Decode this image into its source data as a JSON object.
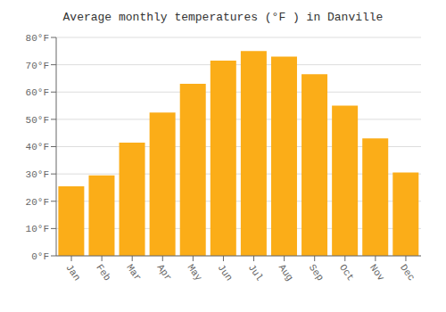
{
  "chart_data": {
    "type": "bar",
    "title": "Average monthly temperatures (°F ) in Danville",
    "categories": [
      "Jan",
      "Feb",
      "Mar",
      "Apr",
      "May",
      "Jun",
      "Jul",
      "Aug",
      "Sep",
      "Oct",
      "Nov",
      "Dec"
    ],
    "values": [
      25.5,
      29.5,
      41.5,
      52.5,
      63.0,
      71.5,
      75.0,
      73.0,
      66.5,
      55.0,
      43.0,
      30.5
    ],
    "color": "#FBAD18",
    "ylim": [
      0,
      80
    ],
    "yticks": [
      {
        "value": 0,
        "label": "0°F"
      },
      {
        "value": 10,
        "label": "10°F"
      },
      {
        "value": 20,
        "label": "20°F"
      },
      {
        "value": 30,
        "label": "30°F"
      },
      {
        "value": 40,
        "label": "40°F"
      },
      {
        "value": 50,
        "label": "50°F"
      },
      {
        "value": 60,
        "label": "60°F"
      },
      {
        "value": 70,
        "label": "70°F"
      },
      {
        "value": 80,
        "label": "80°F"
      }
    ],
    "grid": true
  }
}
